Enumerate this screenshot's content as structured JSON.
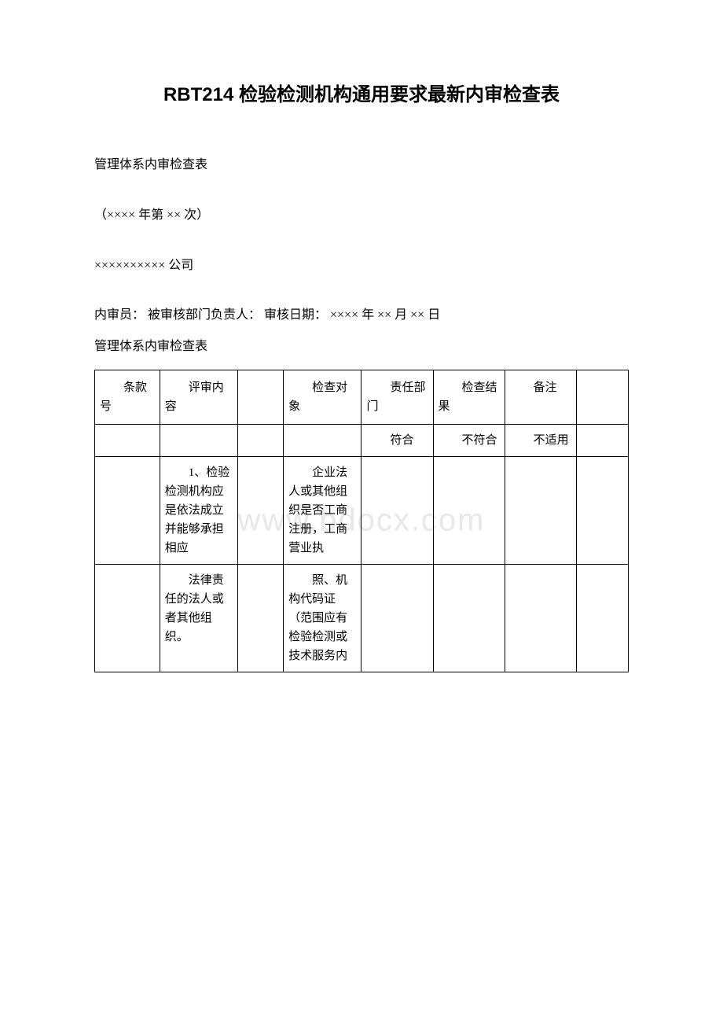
{
  "document": {
    "title": "RBT214 检验检测机构通用要求最新内审检查表",
    "subtitle": "管理体系内审检查表",
    "session": "（×××× 年第 ×× 次）",
    "company": "×××××××××× 公司",
    "auditor_line": "内审员：  被审核部门负责人：  审核日期：  ×××× 年 ×× 月 ×× 日",
    "table_caption": "管理体系内审检查表",
    "watermark": "www.bdocx.com"
  },
  "table": {
    "headers": {
      "col1": "条款号",
      "col2": "评审内容",
      "col3": "",
      "col4": "检查对象",
      "col5": "责任部门",
      "col6": "检查结果",
      "col7": "备注",
      "col8": ""
    },
    "subheaders": {
      "s1": "",
      "s2": "",
      "s3": "",
      "s4": "",
      "s5": "符合",
      "s6": "不符合",
      "s7": "不适用",
      "s8": ""
    },
    "rows": [
      {
        "c1": "",
        "c2": "1、检验检测机构应是依法成立并能够承担相应",
        "c3": "",
        "c4": "企业法人或其他组织是否工商注册，工商营业执",
        "c5": "",
        "c6": "",
        "c7": "",
        "c8": ""
      },
      {
        "c1": "",
        "c2": "法律责任的法人或者其他组织。",
        "c3": "",
        "c4": "照、机构代码证（范围应有检验检测或技术服务内",
        "c5": "",
        "c6": "",
        "c7": "",
        "c8": ""
      }
    ]
  },
  "styles": {
    "background_color": "#ffffff",
    "text_color": "#000000",
    "border_color": "#000000",
    "watermark_color": "#e8e8e8",
    "title_fontsize": 24,
    "body_fontsize": 16,
    "table_fontsize": 15
  }
}
